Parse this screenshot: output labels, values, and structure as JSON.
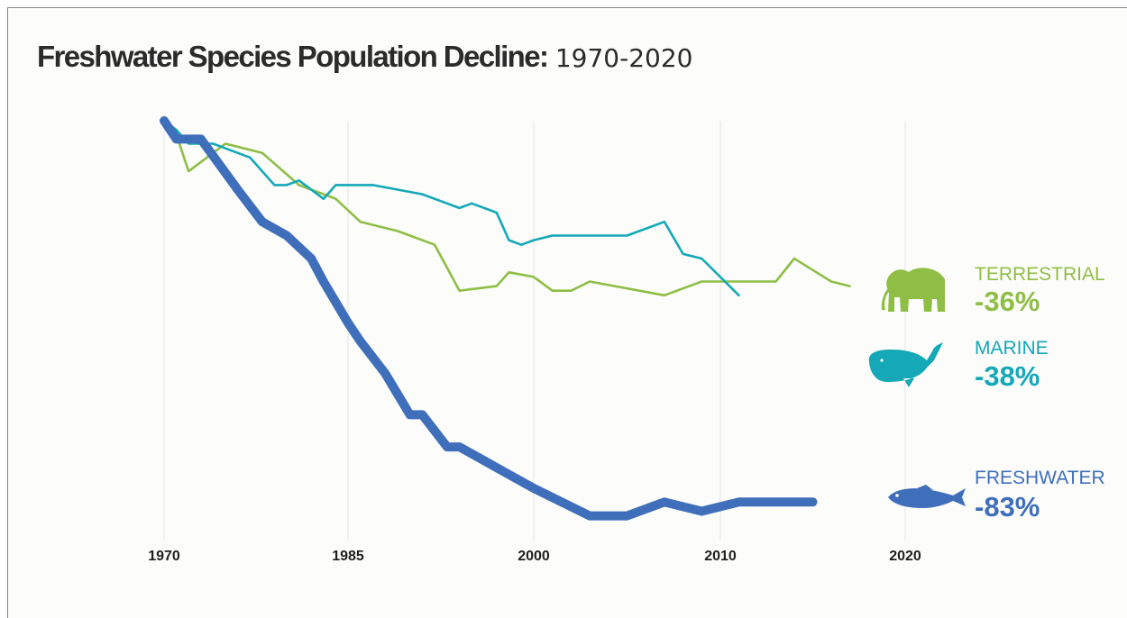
{
  "title": {
    "main": "Freshwater Species Population Decline:",
    "years": "1970-2020"
  },
  "colors": {
    "terrestrial": "#8fbe45",
    "marine": "#14a8b8",
    "freshwater": "#3f6fba",
    "grid": "#e4e4e4",
    "text": "#2b2b2b"
  },
  "icons": {
    "terrestrial": "elephant-icon",
    "marine": "whale-icon",
    "freshwater": "fish-icon"
  },
  "chart_data": {
    "type": "line",
    "title": "Freshwater Species Population Decline: 1970-2020",
    "xlabel": "",
    "ylabel": "",
    "x_ticks": [
      "1970",
      "1985",
      "2000",
      "2010",
      "2020"
    ],
    "grid": "vertical",
    "legend": "right, end-of-line labels with icons",
    "series": [
      {
        "name": "TERRESTRIAL",
        "label_value": "-36%",
        "points": [
          [
            1970,
            0
          ],
          [
            1971,
            -3
          ],
          [
            1972,
            -11
          ],
          [
            1975,
            -5
          ],
          [
            1978,
            -7
          ],
          [
            1981,
            -14
          ],
          [
            1982,
            -15
          ],
          [
            1984,
            -17
          ],
          [
            1986,
            -22
          ],
          [
            1989,
            -24
          ],
          [
            1992,
            -27
          ],
          [
            1993,
            -32
          ],
          [
            1994,
            -37
          ],
          [
            1997,
            -36
          ],
          [
            1998,
            -33
          ],
          [
            2000,
            -34
          ],
          [
            2001,
            -37
          ],
          [
            2002,
            -37
          ],
          [
            2003,
            -35
          ],
          [
            2007,
            -38
          ],
          [
            2009,
            -35
          ],
          [
            2013,
            -35
          ],
          [
            2014,
            -30
          ],
          [
            2016,
            -35
          ],
          [
            2017,
            -36
          ]
        ]
      },
      {
        "name": "MARINE",
        "label_value": "-38%",
        "points": [
          [
            1970,
            0
          ],
          [
            1971,
            -2
          ],
          [
            1972,
            -5
          ],
          [
            1974,
            -5
          ],
          [
            1977,
            -8
          ],
          [
            1979,
            -14
          ],
          [
            1980,
            -14
          ],
          [
            1981,
            -13
          ],
          [
            1983,
            -17
          ],
          [
            1984,
            -14
          ],
          [
            1987,
            -14
          ],
          [
            1991,
            -16
          ],
          [
            1993,
            -18
          ],
          [
            1994,
            -19
          ],
          [
            1995,
            -18
          ],
          [
            1997,
            -20
          ],
          [
            1998,
            -26
          ],
          [
            1999,
            -27
          ],
          [
            2000,
            -26
          ],
          [
            2001,
            -25
          ],
          [
            2005,
            -25
          ],
          [
            2007,
            -22
          ],
          [
            2008,
            -29
          ],
          [
            2009,
            -30
          ],
          [
            2011,
            -38
          ]
        ]
      },
      {
        "name": "FRESHWATER",
        "label_value": "-83%",
        "points": [
          [
            1970,
            0
          ],
          [
            1971,
            -4
          ],
          [
            1973,
            -4
          ],
          [
            1976,
            -15
          ],
          [
            1978,
            -22
          ],
          [
            1980,
            -25
          ],
          [
            1982,
            -30
          ],
          [
            1983,
            -35
          ],
          [
            1985,
            -44
          ],
          [
            1986,
            -48
          ],
          [
            1988,
            -55
          ],
          [
            1990,
            -64
          ],
          [
            1991,
            -64
          ],
          [
            1993,
            -71
          ],
          [
            1994,
            -71
          ],
          [
            1996,
            -74
          ],
          [
            1998,
            -77
          ],
          [
            2000,
            -80
          ],
          [
            2003,
            -86
          ],
          [
            2005,
            -86
          ],
          [
            2007,
            -83
          ],
          [
            2009,
            -85
          ],
          [
            2011,
            -83
          ],
          [
            2015,
            -83
          ]
        ]
      }
    ]
  }
}
